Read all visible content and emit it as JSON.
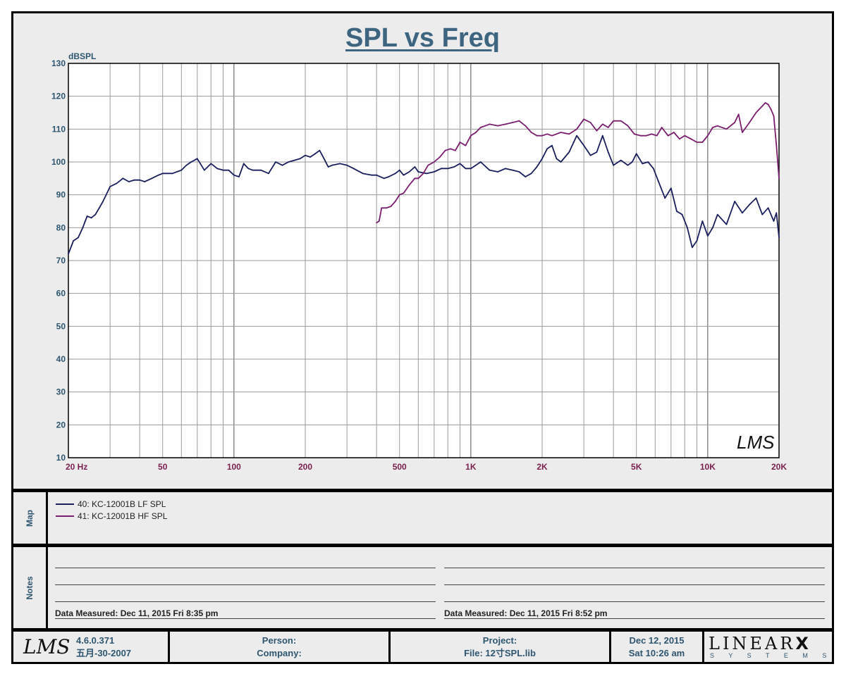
{
  "chart_data": {
    "type": "line",
    "title": "SPL vs Freq",
    "ylabel": "dBSPL",
    "xscale": "log",
    "xlim": [
      20,
      20000
    ],
    "ylim": [
      10,
      130
    ],
    "yticks": [
      130,
      120,
      110,
      100,
      90,
      80,
      70,
      60,
      50,
      40,
      30,
      20,
      10
    ],
    "xtick_labels": [
      {
        "value": 20,
        "label": "20  Hz"
      },
      {
        "value": 50,
        "label": "50"
      },
      {
        "value": 100,
        "label": "100"
      },
      {
        "value": 200,
        "label": "200"
      },
      {
        "value": 500,
        "label": "500"
      },
      {
        "value": 1000,
        "label": "1K"
      },
      {
        "value": 2000,
        "label": "2K"
      },
      {
        "value": 5000,
        "label": "5K"
      },
      {
        "value": 10000,
        "label": "10K"
      },
      {
        "value": 20000,
        "label": "20K"
      }
    ],
    "grid": true,
    "watermark": "LMS",
    "series": [
      {
        "name": "40: KC-12001B  LF SPL",
        "color": "#1a1f5e",
        "x": [
          20,
          21,
          22,
          23,
          24,
          25,
          26,
          27,
          28,
          30,
          32,
          34,
          36,
          38,
          40,
          42,
          45,
          48,
          50,
          55,
          60,
          63,
          66,
          70,
          75,
          80,
          85,
          90,
          95,
          100,
          105,
          110,
          115,
          120,
          130,
          140,
          150,
          160,
          170,
          180,
          190,
          200,
          210,
          220,
          230,
          240,
          250,
          260,
          280,
          300,
          320,
          350,
          380,
          400,
          430,
          450,
          480,
          500,
          520,
          550,
          580,
          600,
          650,
          700,
          750,
          800,
          850,
          900,
          950,
          1000,
          1050,
          1100,
          1200,
          1300,
          1400,
          1500,
          1600,
          1700,
          1800,
          1900,
          2000,
          2100,
          2200,
          2300,
          2400,
          2600,
          2800,
          3000,
          3200,
          3400,
          3600,
          3800,
          4000,
          4300,
          4600,
          4800,
          5000,
          5300,
          5600,
          5900,
          6200,
          6600,
          7000,
          7400,
          7800,
          8200,
          8600,
          9000,
          9500,
          10000,
          10500,
          11000,
          12000,
          13000,
          14000,
          15000,
          16000,
          17000,
          18000,
          19000,
          19500,
          20000
        ],
        "y": [
          72,
          76,
          77,
          80,
          83.5,
          83,
          84,
          86,
          88,
          92.5,
          93.5,
          95,
          94,
          94.5,
          94.5,
          94,
          95,
          96,
          96.5,
          96.5,
          97.5,
          99,
          100,
          101,
          97.5,
          99.5,
          98,
          97.5,
          97.5,
          96,
          95.5,
          99.5,
          98,
          97.5,
          97.5,
          96.5,
          100,
          99,
          100,
          100.5,
          101,
          102,
          101.5,
          102.5,
          103.5,
          101,
          98.5,
          99,
          99.5,
          99,
          98,
          96.5,
          96,
          96,
          95,
          95.5,
          96.5,
          97.5,
          96,
          97,
          98.5,
          97,
          96.5,
          97,
          98,
          98,
          98.5,
          99.5,
          98,
          98,
          99,
          100,
          97.5,
          97,
          98,
          97.5,
          97,
          95.5,
          96.5,
          98.5,
          101,
          104,
          105,
          101,
          100,
          103,
          108,
          105,
          102,
          103,
          108,
          103,
          99,
          100.5,
          99,
          100,
          102.5,
          99.5,
          100,
          98,
          94,
          89,
          92,
          85,
          84,
          80,
          74,
          76,
          82,
          77.5,
          80,
          84,
          81,
          88,
          84.5,
          87,
          89,
          84,
          86,
          82,
          84.5,
          77
        ],
        "note": "Data Measured: Dec 11, 2015  Fri  8:35 pm"
      },
      {
        "name": "41: KC-12001B  HF SPL",
        "color": "#7a1f6e",
        "x": [
          400,
          410,
          420,
          440,
          460,
          480,
          500,
          520,
          550,
          580,
          600,
          630,
          660,
          700,
          740,
          780,
          820,
          860,
          900,
          950,
          1000,
          1050,
          1100,
          1150,
          1200,
          1300,
          1400,
          1500,
          1600,
          1700,
          1800,
          1900,
          2000,
          2100,
          2200,
          2400,
          2600,
          2800,
          3000,
          3200,
          3400,
          3600,
          3800,
          4000,
          4300,
          4600,
          4900,
          5200,
          5500,
          5800,
          6100,
          6400,
          6800,
          7200,
          7600,
          8000,
          8500,
          9000,
          9500,
          10000,
          10500,
          11000,
          12000,
          13000,
          13500,
          14000,
          15000,
          16000,
          17000,
          17500,
          18000,
          18500,
          19000,
          19500,
          20000
        ],
        "y": [
          81.5,
          82,
          86,
          86,
          86.5,
          88,
          90,
          90.5,
          93,
          95,
          95,
          96.5,
          99,
          100,
          101.5,
          103.5,
          104,
          103.5,
          106,
          105,
          108,
          109,
          110.5,
          111,
          111.5,
          111,
          111.5,
          112,
          112.5,
          111,
          109,
          108,
          108,
          108.5,
          108,
          109,
          108.5,
          110,
          113,
          112,
          109.5,
          111.5,
          110.5,
          112.5,
          112.5,
          111,
          108.5,
          108,
          108,
          108.5,
          108,
          110.5,
          108,
          109,
          107,
          108,
          107,
          106,
          106,
          108,
          110.5,
          111,
          110,
          112,
          114.5,
          109,
          112,
          115,
          117,
          118,
          117.5,
          116,
          114,
          105,
          95
        ],
        "note": "Data Measured: Dec 11, 2015  Fri  8:52 pm"
      }
    ]
  },
  "panels": {
    "map_label": "Map",
    "notes_label": "Notes"
  },
  "footer": {
    "version": "4.6.0.371",
    "build_date": "五月-30-2007",
    "person_label": "Person:",
    "company_label": "Company:",
    "project_label": "Project:",
    "file_label": "File: 12寸SPL.lib",
    "date": "Dec 12, 2015",
    "time": "Sat 10:26 am",
    "brand": "LINEAR",
    "brand_x": "X",
    "brand_sub": "S Y S T E M S"
  }
}
